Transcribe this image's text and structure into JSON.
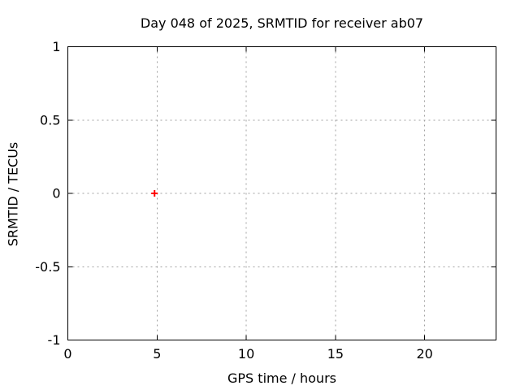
{
  "title": "Day 048 of 2025, SRMTID for receiver ab07",
  "chart_data": {
    "type": "scatter",
    "title": "Day 048 of 2025, SRMTID for receiver ab07",
    "xlabel": "GPS time / hours",
    "ylabel": "SRMTID / TECUs",
    "xlim": [
      0,
      24
    ],
    "ylim": [
      -1,
      1
    ],
    "xticks": [
      0,
      5,
      10,
      15,
      20
    ],
    "yticks": [
      -1,
      -0.5,
      0,
      0.5,
      1
    ],
    "grid": true,
    "grid_style": "dotted",
    "legend_position": "none",
    "series": [
      {
        "name": "SRMTID",
        "marker": "plus",
        "color": "#ff0000",
        "points": [
          {
            "x": 4.86,
            "y": 0.0
          }
        ]
      }
    ]
  },
  "colors": {
    "background": "#ffffff",
    "axis": "#000000",
    "grid": "#a0a0a0",
    "text": "#000000",
    "marker": "#ff0000"
  }
}
